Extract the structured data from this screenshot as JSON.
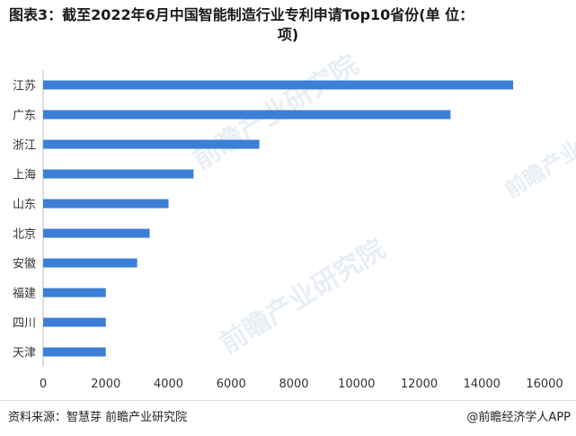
{
  "title_line1": "图表3：截至2022年6月中国智能制造行业专利申请Top10省份(单 位：",
  "title_line2": "项)",
  "source": "资料来源：智慧芽 前瞻产业研究院",
  "credit": "@前瞻经济学人APP",
  "watermark": "前瞻产业研究院",
  "colors": {
    "bar": "#3b7fd6",
    "axis": "#bfbfbf",
    "tick_text": "#333333"
  },
  "chart_data": {
    "type": "bar",
    "orientation": "horizontal",
    "title": "图表3：截至2022年6月中国智能制造行业专利申请Top10省份(单 位：项)",
    "categories": [
      "江苏",
      "广东",
      "浙江",
      "上海",
      "山东",
      "北京",
      "安徽",
      "福建",
      "四川",
      "天津"
    ],
    "values": [
      15000,
      13000,
      6900,
      4800,
      4000,
      3400,
      3000,
      2000,
      2000,
      2000
    ],
    "xlim": [
      0,
      16000
    ],
    "xticks": [
      0,
      2000,
      4000,
      6000,
      8000,
      10000,
      12000,
      14000,
      16000
    ],
    "xlabel": "",
    "ylabel": "",
    "grid": false,
    "legend": "none"
  }
}
